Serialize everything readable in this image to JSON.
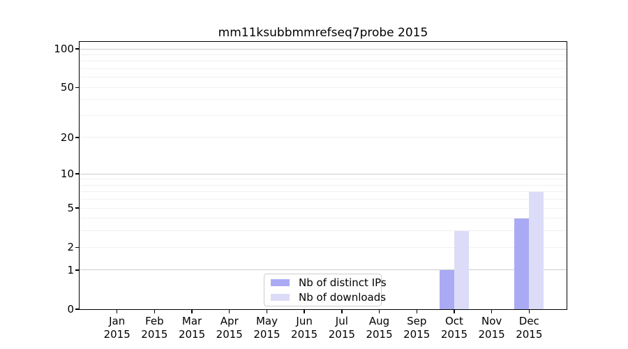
{
  "chart_data": {
    "type": "bar",
    "title": "mm11ksubbmmrefseq7probe 2015",
    "categories": [
      "Jan",
      "Feb",
      "Mar",
      "Apr",
      "May",
      "Jun",
      "Jul",
      "Aug",
      "Sep",
      "Oct",
      "Nov",
      "Dec"
    ],
    "category_sublabel": "2015",
    "series": [
      {
        "name": "Nb of distinct IPs",
        "color": "#aaaaf4",
        "values": [
          0,
          0,
          0,
          0,
          0,
          0,
          0,
          0,
          0,
          1,
          0,
          4
        ]
      },
      {
        "name": "Nb of downloads",
        "color": "#dcdcf8",
        "values": [
          0,
          0,
          0,
          0,
          0,
          0,
          0,
          0,
          0,
          3,
          0,
          7
        ]
      }
    ],
    "yscale": "log1p",
    "ylim": [
      0,
      113
    ],
    "yticks": [
      0,
      1,
      2,
      5,
      10,
      20,
      50,
      100
    ],
    "minor_gridlines": [
      3,
      4,
      6,
      7,
      8,
      9,
      30,
      40,
      60,
      70,
      80,
      90
    ],
    "emphasized_gridlines": [
      1,
      10,
      100
    ],
    "grid": true,
    "legend_position": "bottom-center-inside"
  },
  "colors": {
    "background": "#ffffff",
    "grid_major": "#cccccc",
    "grid_minor": "#f0f0f0",
    "spine": "#000000",
    "legend_border": "#cccccc",
    "text": "#000000"
  }
}
